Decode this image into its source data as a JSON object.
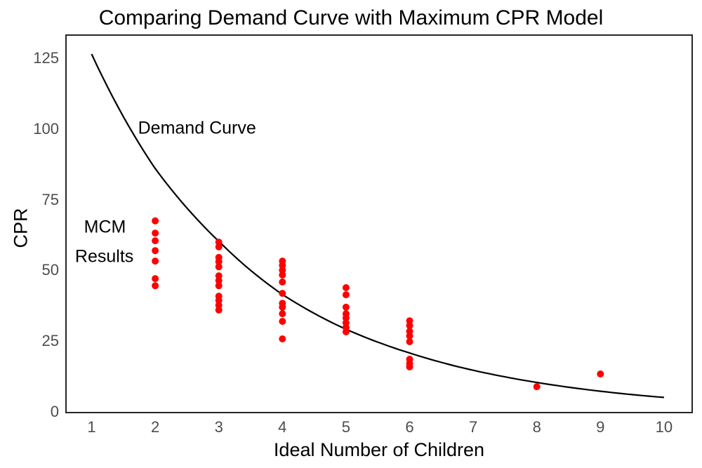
{
  "chart_data": {
    "type": "scatter",
    "title": "Comparing Demand Curve with Maximum CPR Model",
    "xlabel": "Ideal Number of Children",
    "ylabel": "CPR",
    "x_ticks": [
      1,
      2,
      3,
      4,
      5,
      6,
      7,
      8,
      9,
      10
    ],
    "y_ticks": [
      0,
      25,
      50,
      75,
      100,
      125
    ],
    "xlim": [
      0.6,
      10.45
    ],
    "ylim": [
      -1,
      133
    ],
    "grid": false,
    "legend_position": "none",
    "panel_border_color": "#262626",
    "series": [
      {
        "name": "Demand Curve",
        "type": "line",
        "color": "#000000",
        "points": [
          [
            1,
            126.5
          ],
          [
            2,
            86.0
          ],
          [
            3,
            60.3
          ],
          [
            4,
            41.5
          ],
          [
            5,
            29.2
          ],
          [
            6,
            20.8
          ],
          [
            7,
            14.7
          ],
          [
            8,
            10.4
          ],
          [
            9,
            7.3
          ],
          [
            10,
            5.1
          ]
        ]
      },
      {
        "name": "MCM Results",
        "type": "scatter",
        "color": "#FF0000",
        "points": [
          [
            2,
            67.5
          ],
          [
            2,
            63.2
          ],
          [
            2,
            60.5
          ],
          [
            2,
            57.0
          ],
          [
            2,
            53.3
          ],
          [
            2,
            47.1
          ],
          [
            2,
            44.6
          ],
          [
            3,
            60.0
          ],
          [
            3,
            58.3
          ],
          [
            3,
            54.6
          ],
          [
            3,
            53.1
          ],
          [
            3,
            51.3
          ],
          [
            3,
            48.1
          ],
          [
            3,
            46.4
          ],
          [
            3,
            44.6
          ],
          [
            3,
            40.9
          ],
          [
            3,
            39.4
          ],
          [
            3,
            37.7
          ],
          [
            3,
            36.0
          ],
          [
            4,
            53.3
          ],
          [
            4,
            51.8
          ],
          [
            4,
            50.1
          ],
          [
            4,
            48.4
          ],
          [
            4,
            45.9
          ],
          [
            4,
            41.9
          ],
          [
            4,
            38.4
          ],
          [
            4,
            37.0
          ],
          [
            4,
            34.7
          ],
          [
            4,
            32.0
          ],
          [
            4,
            25.8
          ],
          [
            5,
            43.9
          ],
          [
            5,
            41.4
          ],
          [
            5,
            37.0
          ],
          [
            5,
            34.7
          ],
          [
            5,
            33.2
          ],
          [
            5,
            31.5
          ],
          [
            5,
            29.8
          ],
          [
            5,
            28.3
          ],
          [
            6,
            32.2
          ],
          [
            6,
            30.5
          ],
          [
            6,
            28.5
          ],
          [
            6,
            26.8
          ],
          [
            6,
            24.8
          ],
          [
            6,
            18.6
          ],
          [
            6,
            17.1
          ],
          [
            6,
            15.9
          ],
          [
            8,
            8.9
          ],
          [
            9,
            13.4
          ]
        ]
      }
    ],
    "annotations": [
      {
        "text": "Demand Curve",
        "x": 1.73,
        "y": 100.2,
        "anchor": "left"
      },
      {
        "text": "MCM",
        "x": 1.21,
        "y": 65.2,
        "anchor": "center"
      },
      {
        "text": "Results",
        "x": 1.2,
        "y": 54.8,
        "anchor": "center"
      }
    ]
  }
}
